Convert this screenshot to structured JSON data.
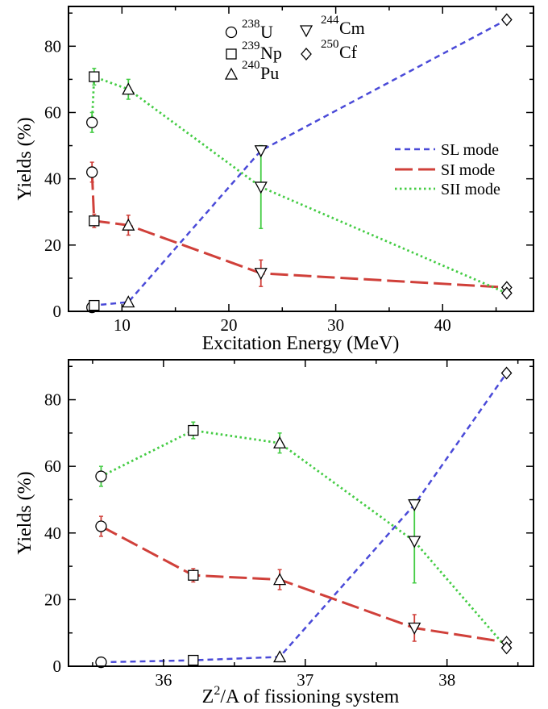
{
  "chart_data": [
    {
      "type": "line",
      "xlabel": "Excitation Energy (MeV)",
      "ylabel": "Yields (%)",
      "xlim": [
        5,
        48.5
      ],
      "ylim": [
        0,
        92
      ],
      "xticks": [
        10,
        20,
        30,
        40
      ],
      "yticks": [
        0,
        20,
        40,
        60,
        80
      ],
      "grid": false,
      "legend_placement": "right",
      "series": [
        {
          "name": "SL mode",
          "color": "#4a4ad8",
          "dash": "dashed",
          "points": [
            {
              "x": 7.2,
              "y": 1.2,
              "nucleus": "U238"
            },
            {
              "x": 7.4,
              "y": 1.8,
              "nucleus": "Np239"
            },
            {
              "x": 10.6,
              "y": 2.8,
              "nucleus": "Pu240"
            },
            {
              "x": 23.0,
              "y": 48.5,
              "nucleus": "Cm244"
            },
            {
              "x": 46.0,
              "y": 88.0,
              "nucleus": "Cf250"
            }
          ]
        },
        {
          "name": "SI mode",
          "color": "#d0403a",
          "dash": "long-dash",
          "points": [
            {
              "x": 7.2,
              "y": 42.0,
              "err": 3.0,
              "nucleus": "U238"
            },
            {
              "x": 7.4,
              "y": 27.3,
              "err": 2.0,
              "nucleus": "Np239"
            },
            {
              "x": 10.6,
              "y": 26.0,
              "err": 3.0,
              "nucleus": "Pu240"
            },
            {
              "x": 23.0,
              "y": 11.5,
              "err": 4.0,
              "nucleus": "Cm244"
            },
            {
              "x": 46.0,
              "y": 7.2,
              "nucleus": "Cf250"
            }
          ]
        },
        {
          "name": "SII mode",
          "color": "#44cc44",
          "dash": "dotted",
          "points": [
            {
              "x": 7.2,
              "y": 57.0,
              "err": 3.0,
              "nucleus": "U238"
            },
            {
              "x": 7.4,
              "y": 70.8,
              "err": 2.5,
              "nucleus": "Np239"
            },
            {
              "x": 10.6,
              "y": 67.0,
              "err": 3.0,
              "nucleus": "Pu240"
            },
            {
              "x": 23.0,
              "y": 37.5,
              "err": 12.5,
              "nucleus": "Cm244"
            },
            {
              "x": 46.0,
              "y": 5.5,
              "nucleus": "Cf250"
            }
          ]
        }
      ]
    },
    {
      "type": "line",
      "xlabel": "Z",
      "xlabel_sup": "2",
      "xlabel_rest": "/A of fissioning system",
      "ylabel": "Yields (%)",
      "xlim": [
        35.33,
        38.61
      ],
      "ylim": [
        0,
        92
      ],
      "xticks": [
        36,
        37,
        38
      ],
      "yticks": [
        0,
        20,
        40,
        60,
        80
      ],
      "grid": false,
      "series": [
        {
          "name": "SL mode",
          "color": "#4a4ad8",
          "dash": "dashed",
          "points": [
            {
              "x": 35.56,
              "y": 1.2,
              "nucleus": "U238"
            },
            {
              "x": 36.21,
              "y": 1.8,
              "nucleus": "Np239"
            },
            {
              "x": 36.82,
              "y": 2.8,
              "nucleus": "Pu240"
            },
            {
              "x": 37.77,
              "y": 48.5,
              "nucleus": "Cm244"
            },
            {
              "x": 38.42,
              "y": 88.0,
              "nucleus": "Cf250"
            }
          ]
        },
        {
          "name": "SI mode",
          "color": "#d0403a",
          "dash": "long-dash",
          "points": [
            {
              "x": 35.56,
              "y": 42.0,
              "err": 3.0,
              "nucleus": "U238"
            },
            {
              "x": 36.21,
              "y": 27.3,
              "err": 2.0,
              "nucleus": "Np239"
            },
            {
              "x": 36.82,
              "y": 26.0,
              "err": 3.0,
              "nucleus": "Pu240"
            },
            {
              "x": 37.77,
              "y": 11.5,
              "err": 4.0,
              "nucleus": "Cm244"
            },
            {
              "x": 38.42,
              "y": 7.2,
              "nucleus": "Cf250"
            }
          ]
        },
        {
          "name": "SII mode",
          "color": "#44cc44",
          "dash": "dotted",
          "points": [
            {
              "x": 35.56,
              "y": 57.0,
              "err": 3.0,
              "nucleus": "U238"
            },
            {
              "x": 36.21,
              "y": 70.8,
              "err": 2.5,
              "nucleus": "Np239"
            },
            {
              "x": 36.82,
              "y": 67.0,
              "err": 3.0,
              "nucleus": "Pu240"
            },
            {
              "x": 37.77,
              "y": 37.5,
              "err": 12.5,
              "nucleus": "Cm244"
            },
            {
              "x": 38.42,
              "y": 5.5,
              "nucleus": "Cf250"
            }
          ]
        }
      ]
    }
  ],
  "nuclei": {
    "U238": {
      "mass": "238",
      "element": "U",
      "marker": "circle"
    },
    "Np239": {
      "mass": "239",
      "element": "Np",
      "marker": "square"
    },
    "Pu240": {
      "mass": "240",
      "element": "Pu",
      "marker": "triangle-up"
    },
    "Cm244": {
      "mass": "244",
      "element": "Cm",
      "marker": "triangle-down"
    },
    "Cf250": {
      "mass": "250",
      "element": "Cf",
      "marker": "diamond"
    }
  },
  "legend_series": [
    "SL mode",
    "SI mode",
    "SII mode"
  ]
}
